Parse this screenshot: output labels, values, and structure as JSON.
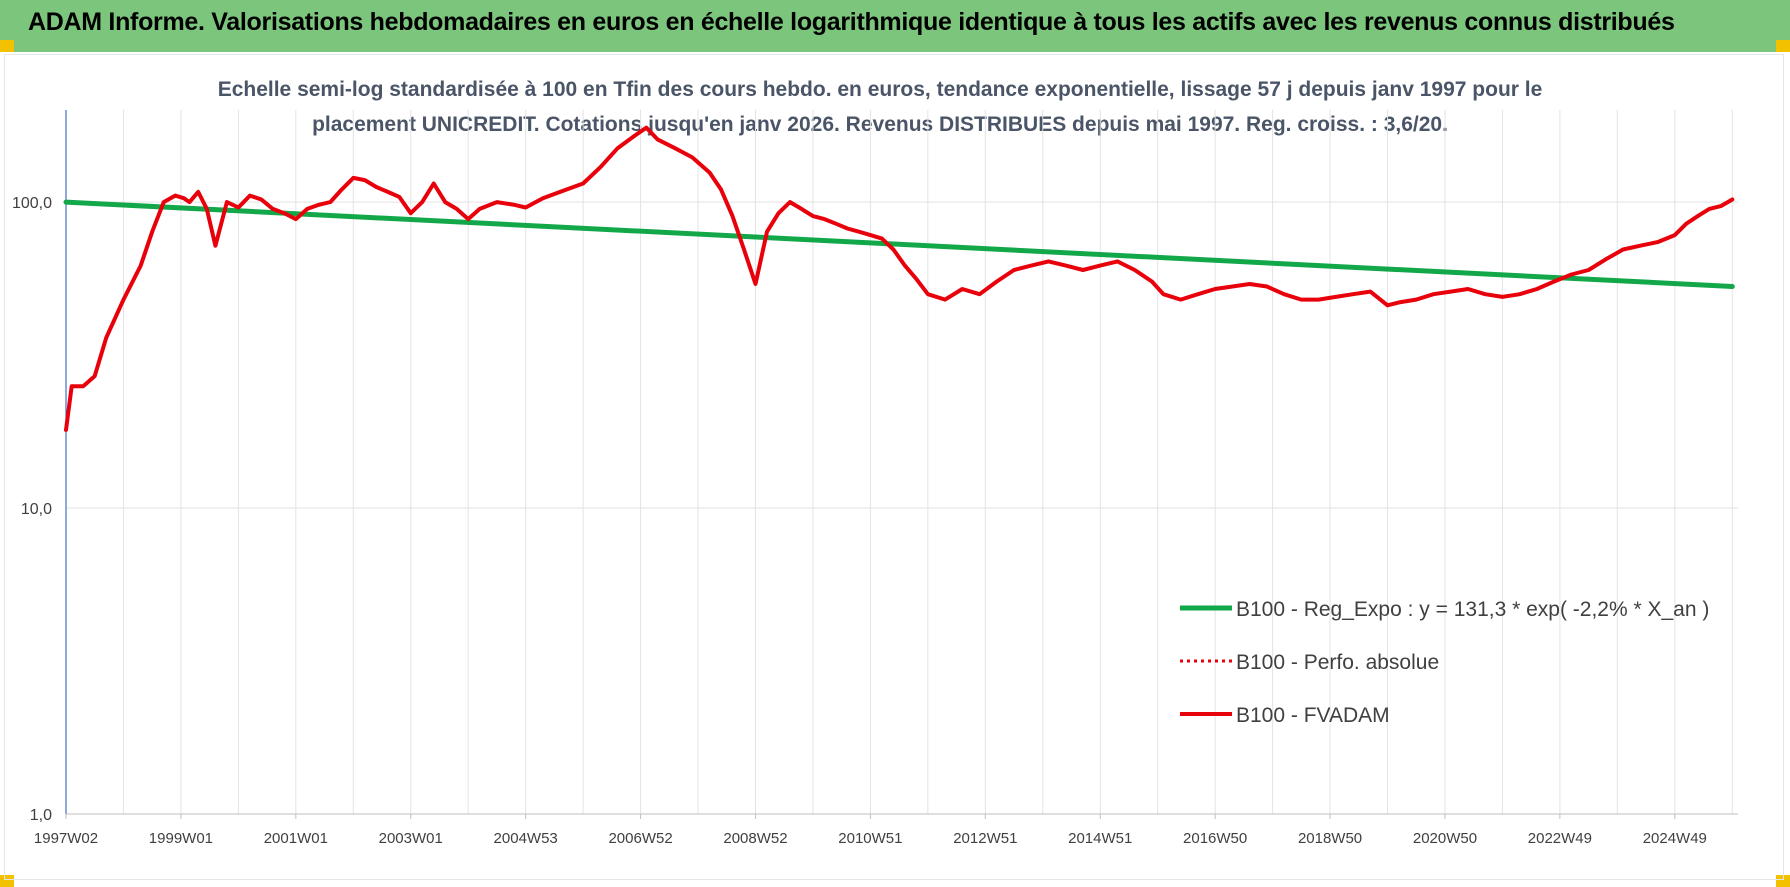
{
  "banner": {
    "title": "ADAM Informe. Valorisations hebdomadaires en euros en échelle logarithmique identique à tous les actifs avec les revenus connus distribués"
  },
  "colors": {
    "banner_bg": "#7cc57c",
    "trend": "#12a84a",
    "series": "#e8000b",
    "corner": "#f2c200"
  },
  "chart_data": {
    "type": "line",
    "title_line1": "Echelle semi-log standardisée à 100 en Tfin des cours hebdo. en euros, tendance exponentielle, lissage 57 j depuis janv 1997 pour le",
    "title_line2": "placement UNICREDIT. Cotations jusqu'en janv 2026. Revenus DISTRIBUES depuis mai 1997. Reg. croiss. : 3,6/20.",
    "y_scale": "log",
    "ylim": [
      1,
      200
    ],
    "y_ticks": [
      {
        "value": 1,
        "label": "1,0"
      },
      {
        "value": 10,
        "label": "10,0"
      },
      {
        "value": 100,
        "label": "100,0"
      }
    ],
    "xlim": [
      1997.0,
      2026.1
    ],
    "x_ticks": [
      {
        "value": 1997.0,
        "label": "1997W02"
      },
      {
        "value": 1999.0,
        "label": "1999W01"
      },
      {
        "value": 2001.0,
        "label": "2001W01"
      },
      {
        "value": 2003.0,
        "label": "2003W01"
      },
      {
        "value": 2005.0,
        "label": "2004W53"
      },
      {
        "value": 2007.0,
        "label": "2006W52"
      },
      {
        "value": 2009.0,
        "label": "2008W52"
      },
      {
        "value": 2011.0,
        "label": "2010W51"
      },
      {
        "value": 2013.0,
        "label": "2012W51"
      },
      {
        "value": 2015.0,
        "label": "2014W51"
      },
      {
        "value": 2017.0,
        "label": "2016W50"
      },
      {
        "value": 2019.0,
        "label": "2018W50"
      },
      {
        "value": 2021.0,
        "label": "2020W50"
      },
      {
        "value": 2023.0,
        "label": "2022W49"
      },
      {
        "value": 2025.0,
        "label": "2024W49"
      }
    ],
    "grid": "vertical",
    "legend_position": "bottom-right",
    "series": [
      {
        "name": "B100 - Reg_Expo : y = 131,3 * exp( -2,2% *  X_an )",
        "style": "solid-green",
        "x": [
          1997.0,
          2026.0
        ],
        "y": [
          100.0,
          53.0
        ]
      },
      {
        "name": "B100 - Perfo. absolue",
        "style": "dotted-red",
        "x": [],
        "y": []
      },
      {
        "name": "B100 - FVADAM",
        "style": "solid-red",
        "x": [
          1997.0,
          1997.1,
          1997.3,
          1997.5,
          1997.7,
          1998.0,
          1998.3,
          1998.5,
          1998.7,
          1998.9,
          1999.05,
          1999.15,
          1999.3,
          1999.45,
          1999.6,
          1999.8,
          2000.0,
          2000.2,
          2000.4,
          2000.6,
          2000.8,
          2001.0,
          2001.2,
          2001.4,
          2001.6,
          2001.8,
          2002.0,
          2002.2,
          2002.4,
          2002.6,
          2002.8,
          2003.0,
          2003.2,
          2003.4,
          2003.6,
          2003.8,
          2004.0,
          2004.2,
          2004.5,
          2004.8,
          2005.0,
          2005.3,
          2005.6,
          2006.0,
          2006.3,
          2006.6,
          2006.9,
          2007.1,
          2007.3,
          2007.6,
          2007.9,
          2008.2,
          2008.4,
          2008.6,
          2008.8,
          2009.0,
          2009.2,
          2009.4,
          2009.6,
          2009.8,
          2010.0,
          2010.2,
          2010.4,
          2010.6,
          2010.8,
          2011.0,
          2011.2,
          2011.4,
          2011.6,
          2011.8,
          2012.0,
          2012.3,
          2012.6,
          2012.9,
          2013.2,
          2013.5,
          2013.8,
          2014.1,
          2014.4,
          2014.7,
          2015.0,
          2015.3,
          2015.6,
          2015.9,
          2016.1,
          2016.4,
          2016.7,
          2017.0,
          2017.3,
          2017.6,
          2017.9,
          2018.2,
          2018.5,
          2018.8,
          2019.1,
          2019.4,
          2019.7,
          2020.0,
          2020.2,
          2020.5,
          2020.8,
          2021.1,
          2021.4,
          2021.7,
          2022.0,
          2022.3,
          2022.6,
          2022.9,
          2023.2,
          2023.5,
          2023.8,
          2024.1,
          2024.4,
          2024.7,
          2025.0,
          2025.2,
          2025.4,
          2025.6,
          2025.8,
          2026.0
        ],
        "y": [
          18.0,
          25.0,
          25.0,
          27.0,
          36.0,
          48.0,
          62.0,
          80.0,
          100.0,
          105.0,
          103.0,
          100.0,
          108.0,
          95.0,
          72.0,
          100.0,
          96.0,
          105.0,
          102.0,
          95.0,
          92.0,
          88.0,
          95.0,
          98.0,
          100.0,
          110.0,
          120.0,
          118.0,
          112.0,
          108.0,
          104.0,
          92.0,
          100.0,
          115.0,
          100.0,
          95.0,
          88.0,
          95.0,
          100.0,
          98.0,
          96.0,
          103.0,
          108.0,
          115.0,
          130.0,
          150.0,
          165.0,
          175.0,
          160.0,
          150.0,
          140.0,
          125.0,
          110.0,
          90.0,
          70.0,
          54.0,
          80.0,
          92.0,
          100.0,
          95.0,
          90.0,
          88.0,
          85.0,
          82.0,
          80.0,
          78.0,
          76.0,
          70.0,
          62.0,
          56.0,
          50.0,
          48.0,
          52.0,
          50.0,
          55.0,
          60.0,
          62.0,
          64.0,
          62.0,
          60.0,
          62.0,
          64.0,
          60.0,
          55.0,
          50.0,
          48.0,
          50.0,
          52.0,
          53.0,
          54.0,
          53.0,
          50.0,
          48.0,
          48.0,
          49.0,
          50.0,
          51.0,
          46.0,
          47.0,
          48.0,
          50.0,
          51.0,
          52.0,
          50.0,
          49.0,
          50.0,
          52.0,
          55.0,
          58.0,
          60.0,
          65.0,
          70.0,
          72.0,
          74.0,
          78.0,
          85.0,
          90.0,
          95.0,
          97.0,
          102.0
        ]
      }
    ]
  }
}
